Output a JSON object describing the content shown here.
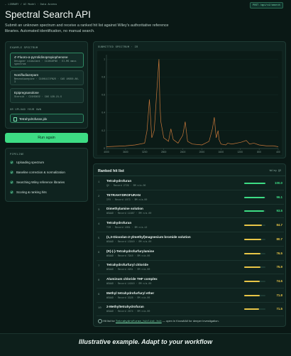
{
  "nav": {
    "crumb": "← LIBRARY / AI Model · Data Access",
    "badge": "POST /api/v1/search"
  },
  "header": {
    "title": "Spectral Search API",
    "subtitle": "Submit an unknown spectrum and receive a ranked hit list against Wiley's authoritative reference libraries. Automated identification, no manual search."
  },
  "example": {
    "heading": "EXAMPLE SPECTRUM",
    "cards": [
      {
        "name": "4'-Fluoro-α-pyrrolidinopropiophenone",
        "meta": "Designer stimulant · C13H16FNO · EI-MS mass spectrum"
      },
      {
        "name": "Nonifludiazepam",
        "meta": "Benzodiazepine · C16H11ClFN2O · CAS 10950-86-3"
      },
      {
        "name": "Epipregnanolone",
        "meta": "Steroid · C21H34O2 · CAS 128-21-5"
      }
    ],
    "upload_heading": "OR UPLOAD YOUR OWN",
    "file": "Tetrahydrofuran.jdx",
    "button": "Run again"
  },
  "pipeline": {
    "heading": "PIPELINE",
    "steps": [
      "Uploading spectrum",
      "Baseline correction & normalization",
      "Searching Wiley reference libraries",
      "Scoring & ranking hits"
    ]
  },
  "chart_data": {
    "type": "line",
    "title": "SUBMITTED SPECTRUM · IR",
    "color": "#c8783a",
    "x": [
      4000,
      3600,
      3400,
      3200,
      3150,
      3100,
      3050,
      3000,
      2980,
      2950,
      2900,
      2880,
      2860,
      2800,
      2700,
      2650,
      2600,
      2500,
      2400,
      2350,
      2300,
      2200,
      2000,
      1850,
      1780,
      1740,
      1700,
      1660,
      1640,
      1600,
      1500,
      1460,
      1370,
      1180,
      1070,
      1000,
      910,
      800,
      650,
      500,
      400
    ],
    "y": [
      0.02,
      0.03,
      0.04,
      0.06,
      0.2,
      0.55,
      0.12,
      0.2,
      0.35,
      0.6,
      1.0,
      0.5,
      0.3,
      0.12,
      0.08,
      0.22,
      0.1,
      0.06,
      0.15,
      0.3,
      0.08,
      0.05,
      0.04,
      0.08,
      0.22,
      0.35,
      0.12,
      0.2,
      0.1,
      0.05,
      0.04,
      0.06,
      0.05,
      0.07,
      0.09,
      0.05,
      0.06,
      0.04,
      0.03,
      0.03,
      0.02
    ],
    "xlim": [
      4000,
      400
    ],
    "ylim": [
      0,
      1.05
    ],
    "xticks": [
      4000,
      3600,
      3200,
      2800,
      2400,
      2000,
      1600,
      1200,
      800,
      400
    ],
    "yticks": [
      0,
      0.2,
      0.4,
      0.6,
      0.8,
      1
    ]
  },
  "hits": {
    "heading": "Ranked hit list",
    "source": "Wiley QS",
    "ranks": [
      1,
      2,
      3,
      4,
      5,
      6,
      7,
      8,
      9,
      10
    ],
    "names": [
      "Tetrahydrofuran",
      "TETRAHYDROFURAN",
      "Dimethylamine solution",
      "Tetrahydrofuran",
      "(1,3-Dioxolan-2-ylmethyl)magnesium bromide solution",
      "(R)-(-)-Tetrahydrofurfurylamine",
      "Tetrahydrofurfuryl chloride",
      "Aluminum chloride THF complex",
      "Methyl tetrahydrofurfuryl ether",
      "2-Methyltetrahydrofuran"
    ],
    "metas": [
      "QV · Record 2729 · RM n/a.00",
      "IFO · Record 1073 · RM n/a.00",
      "WSAAD · Record 11887 · RM n/a.00",
      "TCM · Record 1001 · RM n/a.12",
      "WSAAD · Record 13910 · RM n/a.00",
      "WSAAD · Record 7910 · RM n/a.00",
      "WSAAD · Record 4951 · RM n/a.00",
      "WSAAD · Record 14910 · RM n/a.00",
      "WSAAD · Record 3328 · RM n/a.00",
      "WSAAD · Record 2674 · RM n/a.00"
    ],
    "values": [
      100,
      96.1,
      93.5,
      84.7,
      80.7,
      76.5,
      75.9,
      74.5,
      71.8,
      71.5
    ],
    "value_labels": [
      "100.0",
      "96.1",
      "93.5",
      "84.7",
      "80.7",
      "76.5",
      "75.9",
      "74.5",
      "71.8",
      "71.5"
    ],
    "colors": [
      "#3ddc84",
      "#3ddc84",
      "#3ddc84",
      "#e8c547",
      "#e8c547",
      "#e8c547",
      "#e8c547",
      "#e8c547",
      "#e8c547",
      "#e8c547"
    ],
    "note_prefix": "Hit list for",
    "note_file": "Tetrahydrofuran_hitlist.hit",
    "note_suffix": "— open in KnowItAll for deeper investigation."
  },
  "footer": "Illustrative example. Adapt to your workflow"
}
